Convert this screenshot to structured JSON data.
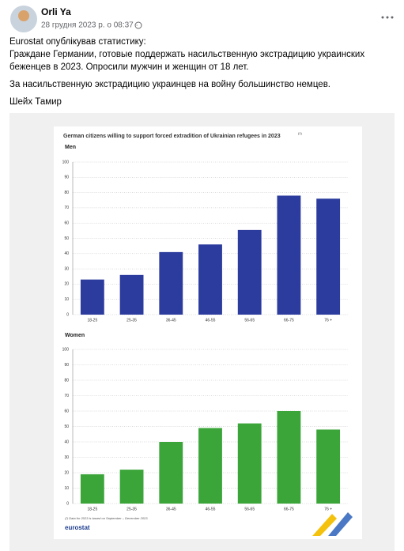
{
  "post": {
    "author": "Orli Ya",
    "timestamp": "28 грудня 2023 р. о 08:37 ·",
    "text_lines": [
      "Eurostat опублікував статистику:",
      "Граждане Германии, готовые поддержать насильственную экстрадицию украинских",
      "беженцев в 2023. Опросили мужчин и женщин от 18 лет.",
      "За насильственную экстрадицию украинцев на войну большинство немцев.",
      "Шейх Тамир"
    ]
  },
  "image": {
    "footnote": "(¹) Data for 2023 is based on September – December 2023.",
    "logo_text": "eurostat"
  },
  "chart_data": [
    {
      "type": "bar",
      "title": "German citizens willing to support forced extradition of Ukrainian refugees in 2023",
      "title_note": "(1)",
      "subtitle": "Men",
      "categories": [
        "18-25",
        "25-35",
        "36-45",
        "46-55",
        "56-65",
        "66-75",
        "76 +"
      ],
      "values": [
        23,
        26,
        41,
        46,
        55.5,
        78,
        76
      ],
      "color": "#2b3b9e",
      "ylim": [
        0,
        100
      ],
      "yticks": [
        0,
        10,
        20,
        30,
        40,
        50,
        60,
        70,
        80,
        90,
        100
      ],
      "grid": true
    },
    {
      "type": "bar",
      "subtitle": "Women",
      "categories": [
        "18-25",
        "25-35",
        "36-45",
        "46-55",
        "56-65",
        "66-75",
        "76 +"
      ],
      "values": [
        19,
        22,
        40,
        49,
        52,
        60,
        48
      ],
      "color": "#3ba53a",
      "ylim": [
        0,
        100
      ],
      "yticks": [
        0,
        10,
        20,
        30,
        40,
        50,
        60,
        70,
        80,
        90,
        100
      ],
      "grid": true
    }
  ]
}
